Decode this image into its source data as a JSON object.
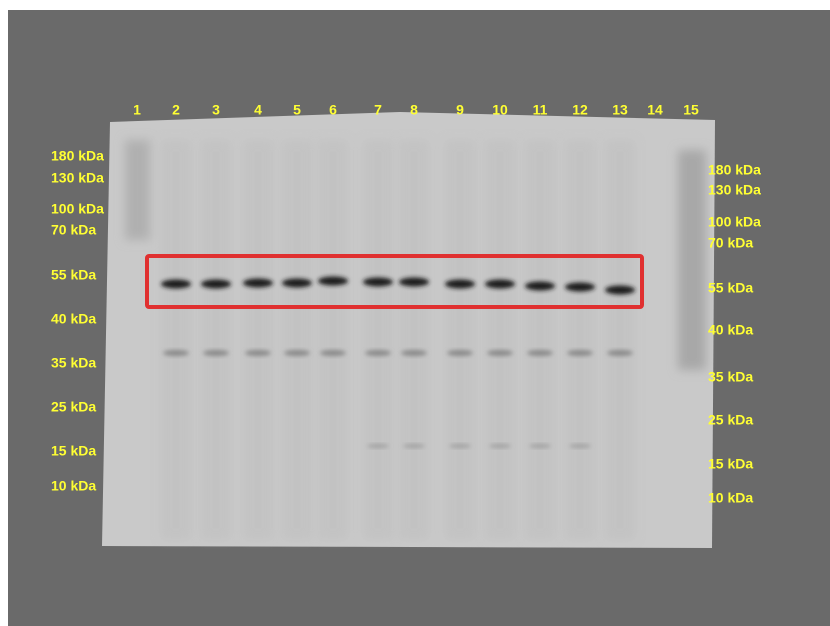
{
  "lanes": [
    "1",
    "2",
    "3",
    "4",
    "5",
    "6",
    "7",
    "8",
    "9",
    "10",
    "11",
    "12",
    "13",
    "14",
    "15"
  ],
  "left_markers": [
    "180 kDa",
    "130 kDa",
    "100 kDa",
    "70 kDa",
    "55 kDa",
    "40 kDa",
    "35 kDa",
    "25 kDa",
    "15 kDa",
    "10 kDa"
  ],
  "right_markers": [
    "180 kDa",
    "130 kDa",
    "100 kDa",
    "70 kDa",
    "55 kDa",
    "40 kDa",
    "35 kDa",
    "25 kDa",
    "15 kDa",
    "10 kDa"
  ]
}
